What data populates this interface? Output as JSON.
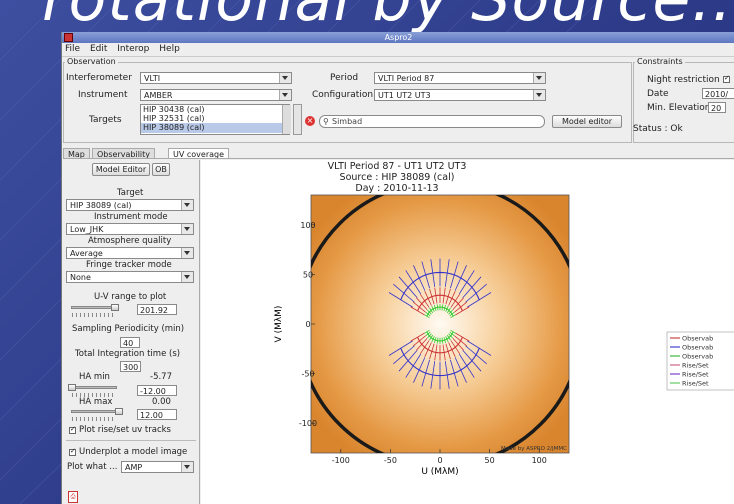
{
  "slide": {
    "title": "rotational by Source..."
  },
  "window": {
    "title": "Aspro2"
  },
  "menu": [
    "File",
    "Edit",
    "Interop",
    "Help"
  ],
  "observation": {
    "group_title": "Observation",
    "interferometer_label": "Interferometer",
    "interferometer_value": "VLTI",
    "period_label": "Period",
    "period_value": "VLTI Period 87",
    "instrument_label": "Instrument",
    "instrument_value": "AMBER",
    "configuration_label": "Configuration",
    "configuration_value": "UT1 UT2 UT3",
    "targets_label": "Targets",
    "targets": [
      "HIP 30438 (cal)",
      "HIP 32531 (cal)",
      "HIP 38089 (cal)"
    ],
    "simbad_placeholder": "Simbad",
    "model_editor_button": "Model editor"
  },
  "constraints": {
    "group_title": "Constraints",
    "night_restriction_label": "Night restriction",
    "date_label": "Date",
    "date_value": "2010/",
    "min_elevation_label": "Min. Elevation",
    "min_elevation_value": "20",
    "status_text": "Status : Ok"
  },
  "tabs": [
    "Map",
    "Observability",
    "UV coverage"
  ],
  "side": {
    "model_editor_button": "Model Editor",
    "ob_button": "OB",
    "target_label": "Target",
    "target_value": "HIP 38089 (cal)",
    "instrument_mode_label": "Instrument mode",
    "instrument_mode_value": "Low_JHK",
    "atmosphere_label": "Atmosphere quality",
    "atmosphere_value": "Average",
    "fringe_label": "Fringe tracker mode",
    "fringe_value": "None",
    "uv_range_label": "U-V range to plot",
    "uv_range_value": "201.92",
    "uv_range_fraction": 0.6,
    "sampling_label": "Sampling Periodicity (min)",
    "sampling_value": "40",
    "integration_label": "Total Integration time (s)",
    "integration_value": "300",
    "ha_min_label": "HA min",
    "ha_min_readout": "-5.77",
    "ha_min_value": "-12.00",
    "ha_max_label": "HA max",
    "ha_max_readout": "0.00",
    "ha_max_value": "12.00",
    "plot_risesset_label": "Plot rise/set uv tracks",
    "underplot_label": "Underplot a model image",
    "plot_what_label": "Plot what ...",
    "plot_what_value": "AMP"
  },
  "plot": {
    "title_line1": "VLTI Period 87 - UT1 UT2 UT3",
    "title_line2": "Source : HIP 38089 (cal)",
    "title_line3": "Day : 2010-11-13",
    "xlabel": "U (MλM)",
    "ylabel": "V (MλM)",
    "watermark": "Made by ASPRO 2/JMMC",
    "xticks": [
      -100,
      -50,
      0,
      50,
      100
    ],
    "yticks": [
      100,
      50,
      0,
      -50,
      -100
    ],
    "range": [
      -130,
      130
    ],
    "legend": [
      {
        "label": "Observab",
        "color": "#cc4444"
      },
      {
        "label": "Observab",
        "color": "#4444cc"
      },
      {
        "label": "Observab",
        "color": "#44bb44"
      },
      {
        "label": "Rise/Set",
        "color": "#cc6688"
      },
      {
        "label": "Rise/Set",
        "color": "#7744cc"
      },
      {
        "label": "Rise/Set",
        "color": "#66cc66"
      }
    ],
    "colors": {
      "red": "#cc3333",
      "blue": "#3333cc",
      "green": "#33cc33"
    }
  }
}
